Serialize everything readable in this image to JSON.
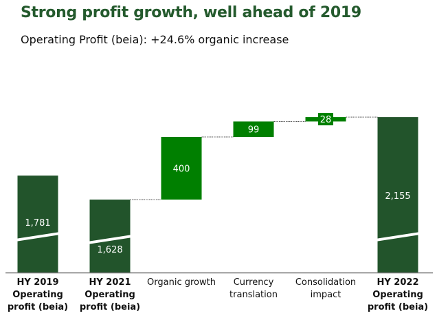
{
  "header": {
    "title": "Strong profit growth, well ahead of 2019",
    "subtitle": "Operating Profit (beia): +24.6% organic increase"
  },
  "chart_data": {
    "type": "waterfall",
    "categories": [
      "HY 2019 Operating profit (beia)",
      "HY 2021 Operating profit (beia)",
      "Organic growth",
      "Currency translation",
      "Consolidation impact",
      "HY 2022 Operating profit (beia)"
    ],
    "values": [
      1781,
      1628,
      400,
      99,
      28,
      2155
    ],
    "labels": [
      "1,781",
      "1,628",
      "400",
      "99",
      "28",
      "2,155"
    ],
    "kinds": [
      "total",
      "total",
      "delta",
      "delta",
      "delta",
      "total"
    ],
    "axis_break": true,
    "colors": {
      "total": "#22542b",
      "delta": "#007f00"
    }
  }
}
